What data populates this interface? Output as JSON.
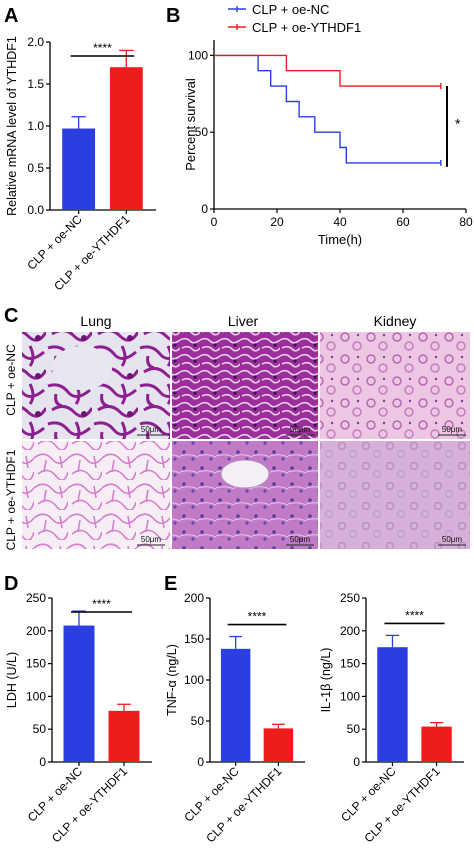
{
  "panel_letters": [
    "A",
    "B",
    "C",
    "D",
    "E"
  ],
  "colors": {
    "blue": "#2b3fe0",
    "red": "#ef1c1c"
  },
  "histology": {
    "columns": [
      "Lung",
      "Liver",
      "Kidney"
    ],
    "rows": [
      "CLP + oe-NC",
      "CLP + oe-YTHDF1"
    ],
    "scale_bar": "50μm"
  },
  "chart_data": [
    {
      "id": "A",
      "type": "bar",
      "categories": [
        "CLP + oe-NC",
        "CLP + oe-YTHDF1"
      ],
      "values": [
        0.97,
        1.7
      ],
      "errors": [
        0.14,
        0.2
      ],
      "ylabel": "Relative mRNA level of YTHDF1",
      "ylim": [
        0,
        2.0
      ],
      "yticks": [
        "0.0",
        "0.5",
        "1.0",
        "1.5",
        "2.0"
      ],
      "significance": "****"
    },
    {
      "id": "B",
      "type": "line",
      "series": [
        {
          "name": "CLP + oe-NC",
          "x": [
            0,
            14,
            14,
            18,
            18,
            23,
            23,
            27,
            27,
            32,
            32,
            40,
            40,
            42,
            42,
            72
          ],
          "y": [
            100,
            100,
            90,
            90,
            80,
            80,
            70,
            70,
            60,
            60,
            50,
            50,
            40,
            40,
            30,
            30
          ]
        },
        {
          "name": "CLP + oe-YTHDF1",
          "x": [
            0,
            23,
            23,
            40,
            40,
            72
          ],
          "y": [
            100,
            100,
            90,
            90,
            80,
            80
          ]
        }
      ],
      "xlabel": "Time(h)",
      "ylabel": "Percent survival",
      "xlim": [
        0,
        80
      ],
      "ylim": [
        0,
        110
      ],
      "xticks": [
        "0",
        "20",
        "40",
        "60",
        "80"
      ],
      "yticks": [
        "0",
        "50",
        "100"
      ],
      "significance": "*",
      "legend": "top"
    },
    {
      "id": "D",
      "type": "bar",
      "categories": [
        "CLP + oe-NC",
        "CLP + oe-YTHDF1"
      ],
      "values": [
        208,
        78
      ],
      "errors": [
        22,
        10
      ],
      "ylabel": "LDH (U/L)",
      "ylim": [
        0,
        250
      ],
      "yticks": [
        "0",
        "50",
        "100",
        "150",
        "200",
        "250"
      ],
      "significance": "****"
    },
    {
      "id": "E1",
      "type": "bar",
      "categories": [
        "CLP + oe-NC",
        "CLP + oe-YTHDF1"
      ],
      "values": [
        138,
        41
      ],
      "errors": [
        15,
        5
      ],
      "ylabel": "TNF-α (ng/L)",
      "ylim": [
        0,
        200
      ],
      "yticks": [
        "0",
        "50",
        "100",
        "150",
        "200"
      ],
      "significance": "****"
    },
    {
      "id": "E2",
      "type": "bar",
      "categories": [
        "CLP + oe-NC",
        "CLP + oe-YTHDF1"
      ],
      "values": [
        175,
        54
      ],
      "errors": [
        18,
        6
      ],
      "ylabel": "IL-1β (ng/L)",
      "ylim": [
        0,
        250
      ],
      "yticks": [
        "0",
        "50",
        "100",
        "150",
        "200",
        "250"
      ],
      "significance": "****"
    }
  ]
}
